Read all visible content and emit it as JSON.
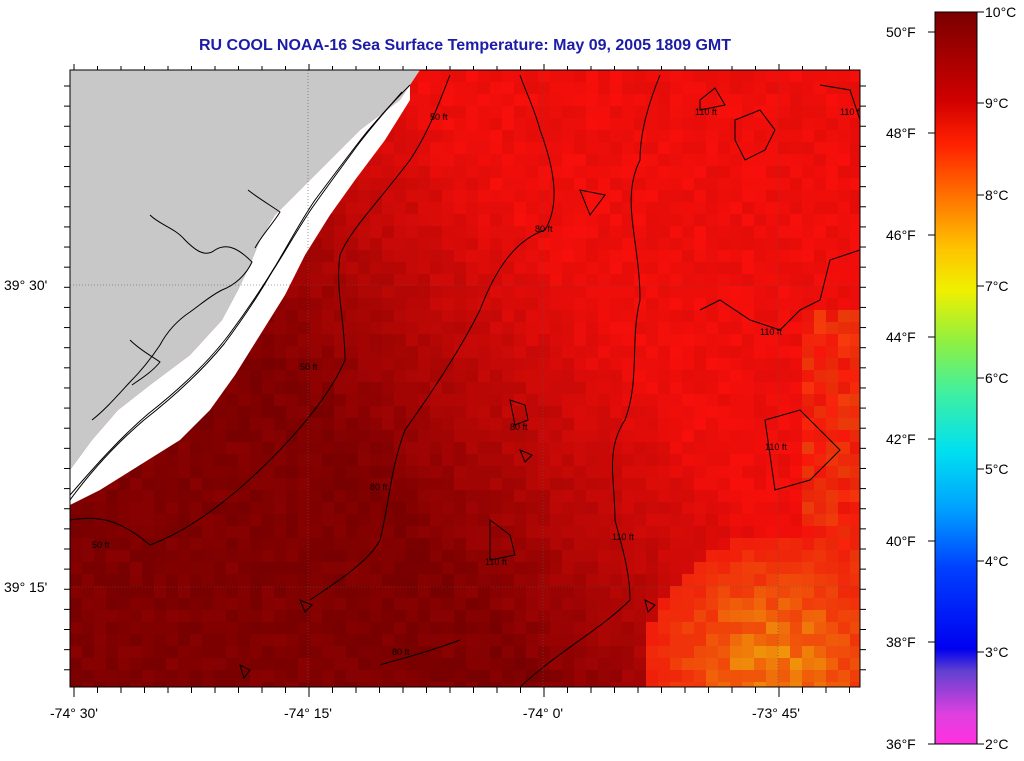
{
  "title": "RU COOL  NOAA-16  Sea Surface Temperature:  May 09, 2005 1809 GMT",
  "longitude_labels": [
    "-74° 30'",
    "-74° 15'",
    "-74° 0'",
    "-73° 45'"
  ],
  "latitude_labels": [
    "39° 30'",
    "39° 15'"
  ],
  "colorbar": {
    "celsius": [
      "10°C",
      "9°C",
      "8°C",
      "7°C",
      "6°C",
      "5°C",
      "4°C",
      "3°C",
      "2°C"
    ],
    "fahrenheit": [
      "50°F",
      "48°F",
      "46°F",
      "44°F",
      "42°F",
      "40°F",
      "38°F",
      "36°F"
    ]
  },
  "depth_contours": [
    "50 ft",
    "50 ft",
    "50 ft",
    "80 ft",
    "80 ft",
    "80 ft",
    "80 ft",
    "110 ft",
    "110 ft",
    "110 ft",
    "110 ft",
    "110 ft",
    "110 ft"
  ],
  "colors": {
    "land": "#c8c8c8",
    "title": "#1c1ca8",
    "warm": "#e81010",
    "cold": "#800000"
  }
}
